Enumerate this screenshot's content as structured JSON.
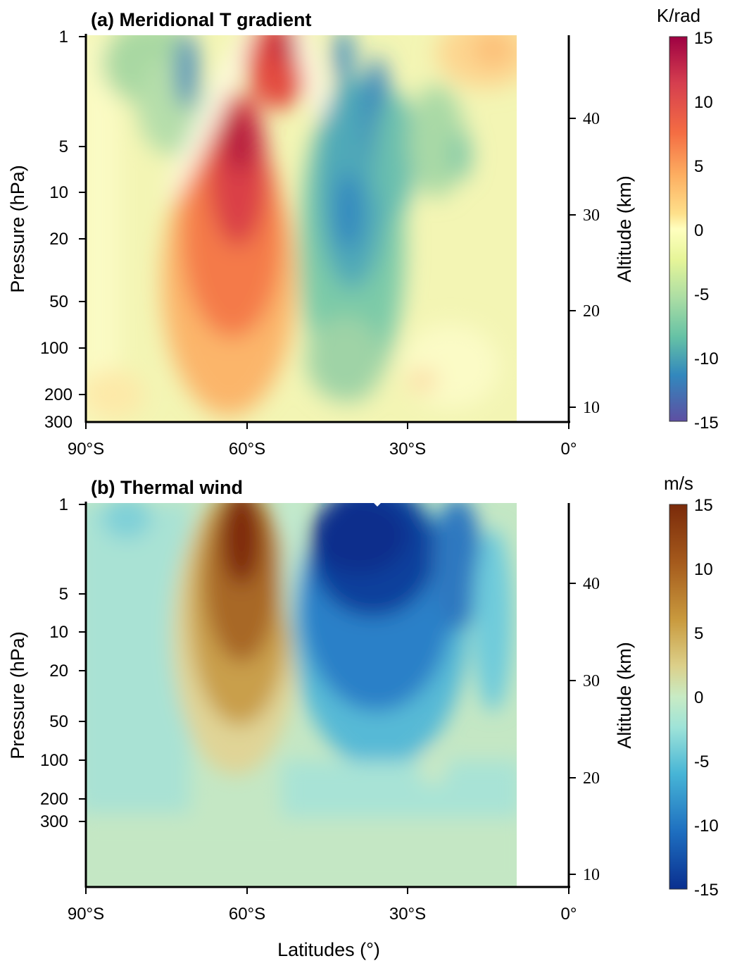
{
  "chart_data": [
    {
      "type": "heatmap",
      "panel": "a",
      "title": "(a) Meridional T gradient",
      "ylabel": "Pressure (hPa)",
      "y2label": "Altitude (km)",
      "colorbar_unit": "K/rad",
      "colorbar_ticks": [
        "15",
        "10",
        "5",
        "0",
        "-5",
        "-10",
        "-15"
      ],
      "colormap": "Spectral (red positive, blue negative)",
      "clim": [
        -15,
        15
      ],
      "x_ticks": [
        "90°S",
        "60°S",
        "30°S",
        "0°"
      ],
      "y_ticks": [
        "1",
        "5",
        "10",
        "20",
        "50",
        "100",
        "200",
        "300"
      ],
      "y2_ticks": [
        "40",
        "30",
        "20",
        "10"
      ],
      "xlim": [
        -90,
        0
      ],
      "data_extent_lat": [
        -90,
        -10
      ],
      "features": [
        {
          "lat": -62,
          "pressure_hPa": 6,
          "value": 15,
          "note": "positive maximum"
        },
        {
          "lat": -72,
          "pressure_hPa": 2,
          "value": -11,
          "note": "negative core"
        },
        {
          "lat": -40,
          "pressure_hPa": 10,
          "value": -11,
          "note": "negative core"
        },
        {
          "lat": -35,
          "pressure_hPa": 3,
          "value": -11,
          "note": "negative core"
        }
      ]
    },
    {
      "type": "heatmap",
      "panel": "b",
      "title": "(b) Thermal wind",
      "xlabel": "Latitudes (°)",
      "ylabel": "Pressure (hPa)",
      "y2label": "Altitude (km)",
      "colorbar_unit": "m/s",
      "colorbar_ticks": [
        "15",
        "10",
        "5",
        "0",
        "-5",
        "-10",
        "-15"
      ],
      "colormap": "brown-to-blue diverging",
      "clim": [
        -15,
        15
      ],
      "x_ticks": [
        "90°S",
        "60°S",
        "30°S",
        "0°"
      ],
      "y_ticks": [
        "1",
        "5",
        "10",
        "20",
        "50",
        "100",
        "200",
        "300"
      ],
      "y2_ticks": [
        "40",
        "30",
        "20",
        "10"
      ],
      "xlim": [
        -90,
        0
      ],
      "data_extent_lat": [
        -90,
        -10
      ],
      "features": [
        {
          "lat": -62,
          "pressure_hPa": 1.5,
          "value": 15,
          "note": "westerly maximum"
        },
        {
          "lat": -36,
          "pressure_hPa": 2,
          "value": -15,
          "note": "easterly core"
        }
      ]
    }
  ]
}
